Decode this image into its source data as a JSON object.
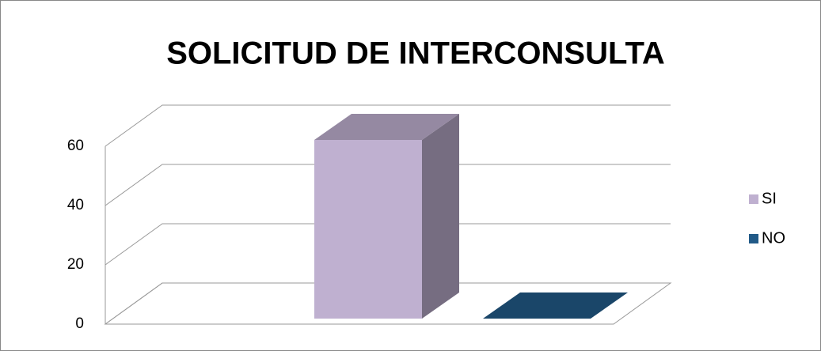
{
  "chart_data": {
    "type": "bar",
    "title": "SOLICITUD DE INTERCONSULTA",
    "categories": [
      null
    ],
    "series": [
      {
        "name": "SI",
        "color": "#bfb0d0",
        "values": [
          60
        ]
      },
      {
        "name": "NO",
        "color": "#215a87",
        "values": [
          0
        ]
      }
    ],
    "ylim": [
      0,
      60
    ],
    "yticks": [
      0,
      20,
      40,
      60
    ],
    "grid": true,
    "legend": "right"
  }
}
